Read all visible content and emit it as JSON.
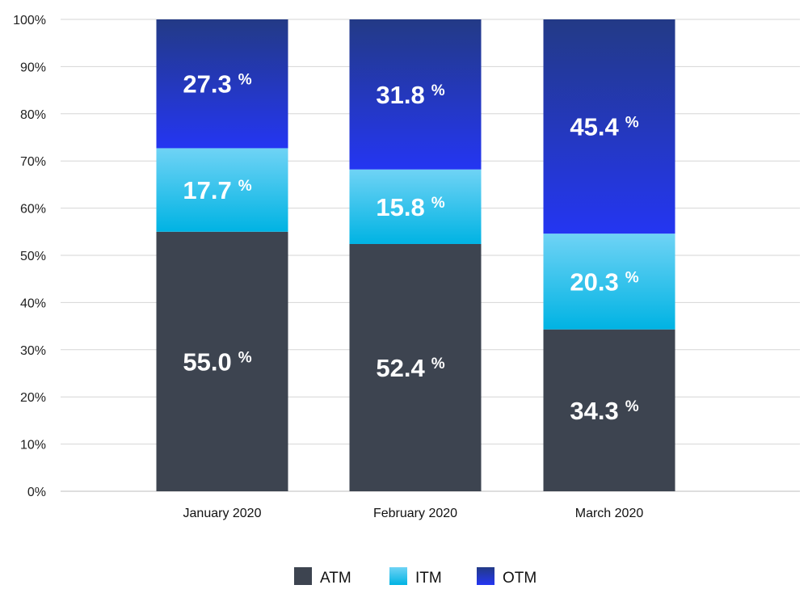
{
  "chart_data": {
    "type": "bar",
    "stacked": true,
    "categories": [
      "January 2020",
      "February 2020",
      "March 2020"
    ],
    "series": [
      {
        "name": "ATM",
        "values": [
          55.0,
          52.4,
          34.3
        ],
        "color": "#3d4450",
        "label_color": "#ffffff"
      },
      {
        "name": "ITM",
        "values": [
          17.7,
          15.8,
          20.3
        ],
        "color_top": "#6fd3f5",
        "color_bottom": "#00b3e3"
      },
      {
        "name": "OTM",
        "values": [
          27.3,
          31.8,
          45.4
        ],
        "color_top": "#233a86",
        "color_bottom": "#2436f2"
      }
    ],
    "value_labels": [
      [
        "55.0",
        "52.4",
        "34.3"
      ],
      [
        "17.7",
        "15.8",
        "20.3"
      ],
      [
        "27.3",
        "31.8",
        "45.4"
      ]
    ],
    "value_suffix": "%",
    "yticks": [
      "0%",
      "10%",
      "20%",
      "30%",
      "40%",
      "50%",
      "60%",
      "70%",
      "80%",
      "90%",
      "100%"
    ],
    "ylim": [
      0,
      100
    ],
    "grid": true,
    "legend_position": "bottom"
  }
}
